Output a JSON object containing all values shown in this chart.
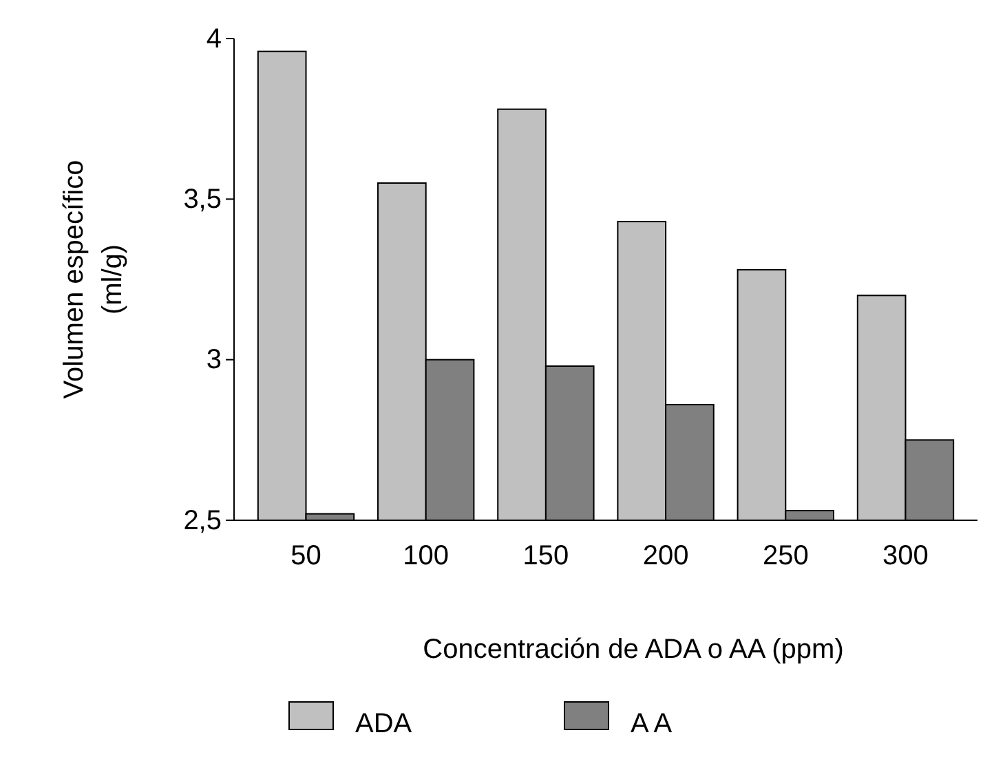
{
  "chart_data": {
    "type": "bar",
    "xlabel": "Concentración de ADA o AA (ppm)",
    "ylabel": "Volumen específico\n(ml/g)",
    "categories": [
      "50",
      "100",
      "150",
      "200",
      "250",
      "300"
    ],
    "series": [
      {
        "name": "ADA",
        "color": "#c0c0c0",
        "values": [
          3.96,
          3.55,
          3.78,
          3.43,
          3.28,
          3.2
        ]
      },
      {
        "name": "A A",
        "color": "#808080",
        "values": [
          2.52,
          3.0,
          2.98,
          2.86,
          2.53,
          2.75
        ]
      }
    ],
    "ylim": [
      2.5,
      4
    ],
    "yticks": [
      {
        "value": 2.5,
        "label": "2,5"
      },
      3,
      {
        "value": 3.5,
        "label": "3,5"
      },
      4
    ],
    "grid": false,
    "legend": "bottom"
  }
}
